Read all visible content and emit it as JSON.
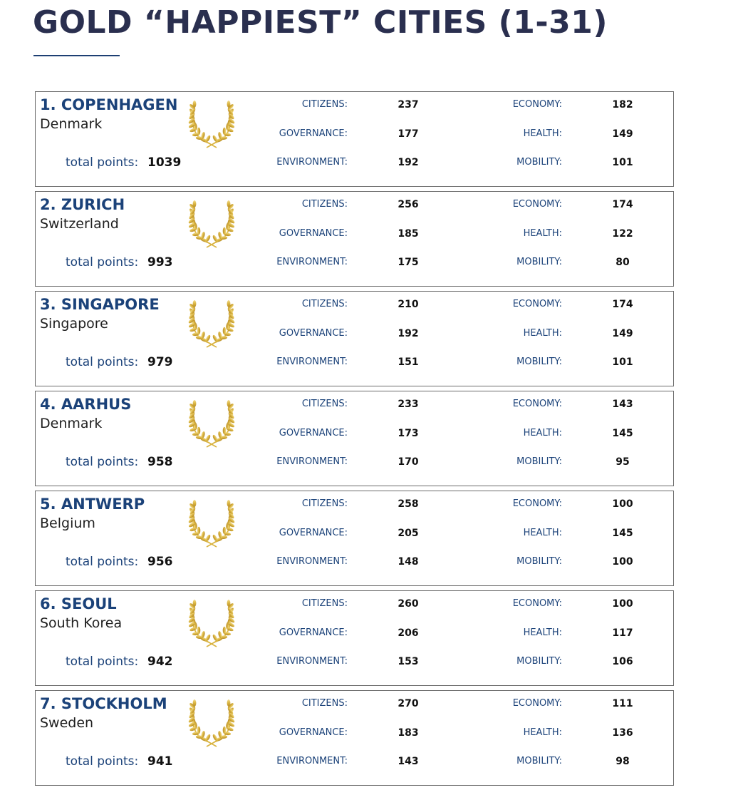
{
  "page": {
    "title": "GOLD “HAPPIEST” CITIES (1-31)"
  },
  "labels": {
    "total_points": "total points:",
    "citizens": "CITIZENS:",
    "governance": "GOVERNANCE:",
    "environment": "ENVIRONMENT:",
    "economy": "ECONOMY:",
    "health": "HEALTH:",
    "mobility": "MOBILITY:"
  },
  "icons": {
    "award": "laurel-wreath-icon"
  },
  "colors": {
    "title": "#2a2f4f",
    "accent": "#1b4279",
    "laurel_gold": "#d9b441"
  },
  "cities": [
    {
      "name": "1. COPENHAGEN",
      "country": "Denmark",
      "total": "1039",
      "citizens": "237",
      "governance": "177",
      "environment": "192",
      "economy": "182",
      "health": "149",
      "mobility": "101"
    },
    {
      "name": "2. ZURICH",
      "country": "Switzerland",
      "total": "993",
      "citizens": "256",
      "governance": "185",
      "environment": "175",
      "economy": "174",
      "health": "122",
      "mobility": "80"
    },
    {
      "name": "3. SINGAPORE",
      "country": "Singapore",
      "total": "979",
      "citizens": "210",
      "governance": "192",
      "environment": "151",
      "economy": "174",
      "health": "149",
      "mobility": "101"
    },
    {
      "name": "4. AARHUS",
      "country": "Denmark",
      "total": "958",
      "citizens": "233",
      "governance": "173",
      "environment": "170",
      "economy": "143",
      "health": "145",
      "mobility": "95"
    },
    {
      "name": "5. ANTWERP",
      "country": "Belgium",
      "total": "956",
      "citizens": "258",
      "governance": "205",
      "environment": "148",
      "economy": "100",
      "health": "145",
      "mobility": "100"
    },
    {
      "name": "6. SEOUL",
      "country": "South Korea",
      "total": "942",
      "citizens": "260",
      "governance": "206",
      "environment": "153",
      "economy": "100",
      "health": "117",
      "mobility": "106"
    },
    {
      "name": "7. STOCKHOLM",
      "country": "Sweden",
      "total": "941",
      "citizens": "270",
      "governance": "183",
      "environment": "143",
      "economy": "111",
      "health": "136",
      "mobility": "98"
    }
  ]
}
